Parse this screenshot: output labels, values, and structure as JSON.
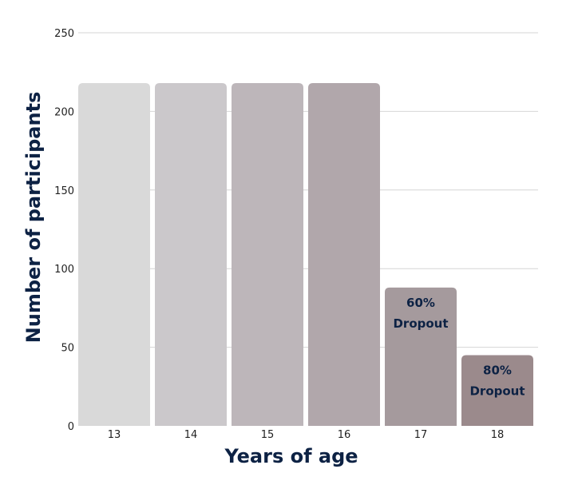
{
  "chart_data": {
    "type": "bar",
    "title": "",
    "xlabel": "Years of age",
    "ylabel": "Number of participants",
    "categories": [
      "13",
      "14",
      "15",
      "16",
      "17",
      "18"
    ],
    "values": [
      218,
      218,
      218,
      218,
      88,
      45
    ],
    "bar_colors": [
      "#d9d9d9",
      "#cbc8cb",
      "#bdb6ba",
      "#b1a7ab",
      "#a59a9d",
      "#9b8a8c"
    ],
    "annotations": [
      {
        "category": "17",
        "lines": [
          "60%",
          "Dropout"
        ]
      },
      {
        "category": "18",
        "lines": [
          "80%",
          "Dropout"
        ]
      }
    ],
    "ylim": [
      0,
      250
    ],
    "yticks": [
      0,
      50,
      100,
      150,
      200,
      250
    ],
    "grid": true,
    "legend": "none",
    "colors": {
      "axis_title": "#0d2244",
      "annotation": "#0d2244",
      "grid": "#d6d6d6",
      "tick_label": "#222222"
    }
  }
}
